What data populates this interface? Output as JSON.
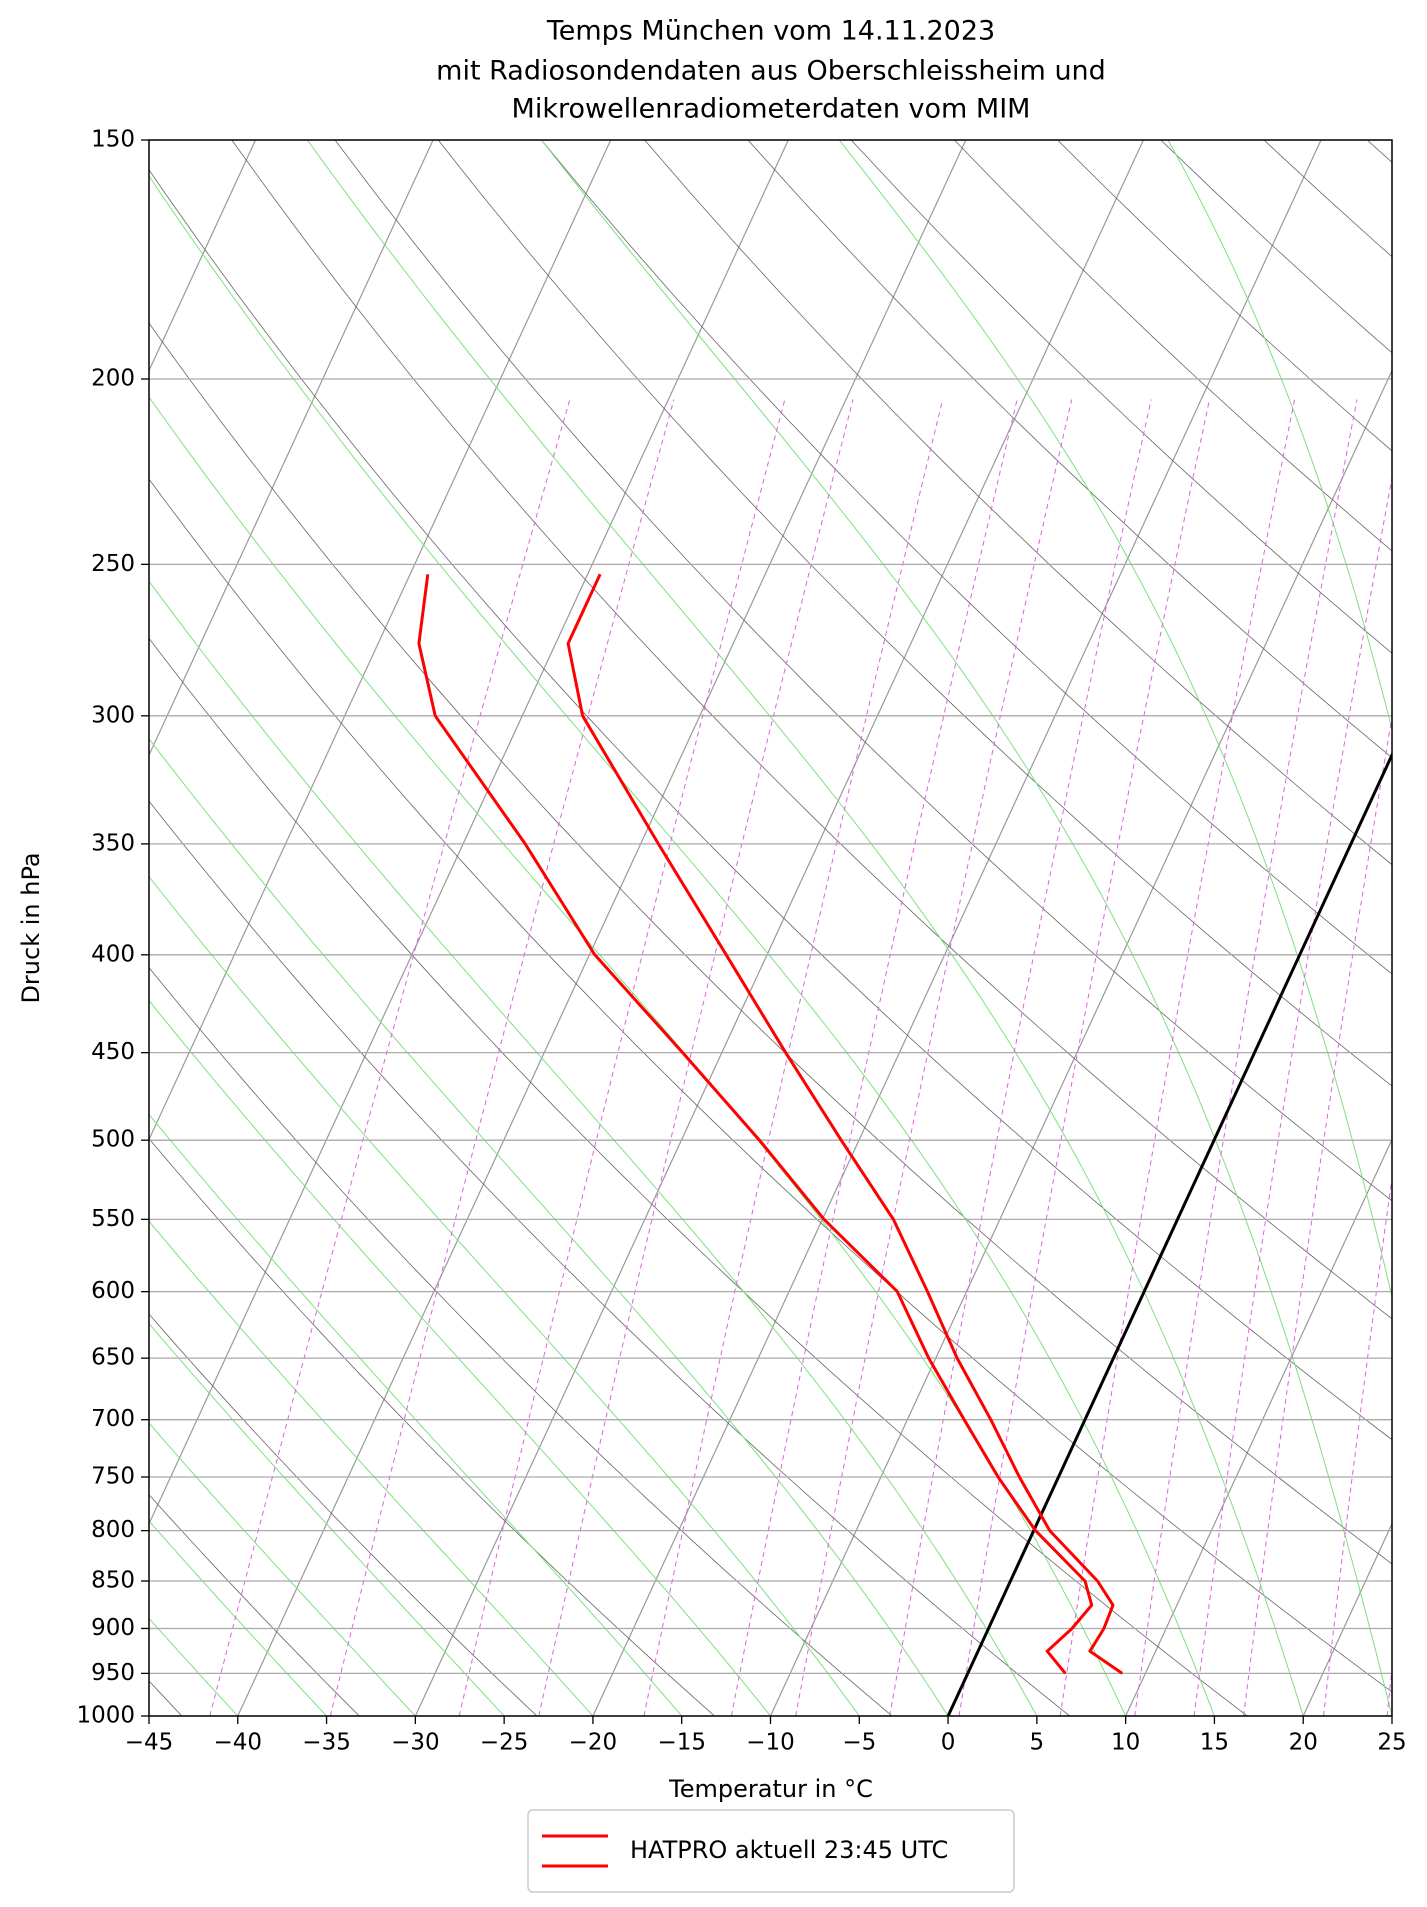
{
  "chart_data": {
    "type": "skewt",
    "title": "Temps München vom 14.11.2023",
    "subtitle": [
      "mit Radiosondendaten aus Oberschleissheim und",
      "Mikrowellenradiometerdaten vom MIM"
    ],
    "x_label": "Temperatur in °C",
    "y_label": "Druck in hPa",
    "legend_label": "HATPRO aktuell 23:45 UTC",
    "y_log": true,
    "grid": true,
    "xlim": [
      -45,
      25
    ],
    "ylim": [
      1000,
      150
    ],
    "xticks": [
      {
        "value": -45,
        "label": "−45"
      },
      {
        "value": -40,
        "label": "−40"
      },
      {
        "value": -35,
        "label": "−35"
      },
      {
        "value": -30,
        "label": "−30"
      },
      {
        "value": -25,
        "label": "−25"
      },
      {
        "value": -20,
        "label": "−20"
      },
      {
        "value": -15,
        "label": "−15"
      },
      {
        "value": -10,
        "label": "−10"
      },
      {
        "value": -5,
        "label": "−5"
      },
      0,
      5,
      10,
      15,
      20,
      25
    ],
    "yticks": [
      1000,
      950,
      900,
      850,
      800,
      750,
      700,
      650,
      600,
      550,
      500,
      450,
      400,
      350,
      300,
      250,
      200,
      150
    ],
    "y": [
      950,
      925,
      900,
      875,
      850,
      800,
      750,
      700,
      650,
      600,
      550,
      500,
      450,
      400,
      350,
      300,
      275,
      253
    ],
    "series": [
      {
        "color": "#ff0000",
        "x": [
          8.7,
          6.3,
          6.5,
          6.4,
          4.9,
          0.9,
          -2.2,
          -5.3,
          -8.8,
          -12.2,
          -16.0,
          -21.0,
          -26.4,
          -32.3,
          -39.0,
          -46.6,
          -49.3,
          -49.3
        ]
      },
      {
        "color": "#ff0000",
        "x": [
          5.5,
          3.9,
          4.7,
          5.2,
          4.2,
          0.1,
          -3.4,
          -6.8,
          -10.4,
          -13.9,
          -19.9,
          -25.6,
          -32.2,
          -39.7,
          -46.5,
          -54.9,
          -57.7,
          -59.0
        ]
      }
    ]
  }
}
